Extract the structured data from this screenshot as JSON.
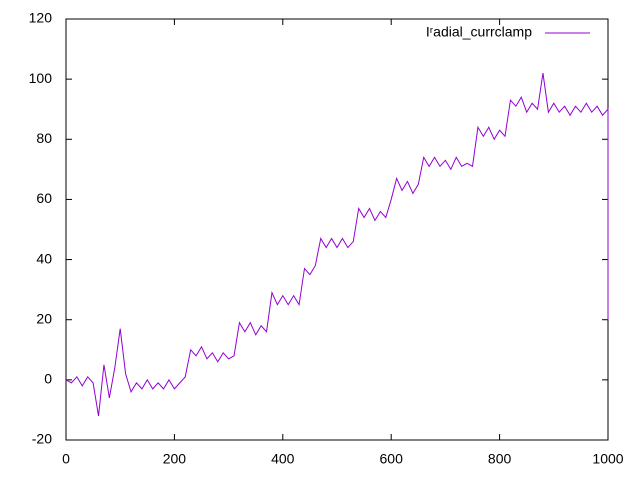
{
  "chart_data": {
    "type": "line",
    "xlim": [
      0,
      1000
    ],
    "xticks": [
      0,
      200,
      400,
      600,
      800,
      1000
    ],
    "ylim": [
      -20,
      120
    ],
    "yticks": [
      -20,
      0,
      20,
      40,
      60,
      80,
      100,
      120
    ],
    "legend": "top-right",
    "x": [
      0,
      10,
      20,
      30,
      40,
      50,
      60,
      70,
      80,
      90,
      100,
      110,
      120,
      130,
      140,
      150,
      160,
      170,
      180,
      190,
      200,
      210,
      220,
      230,
      240,
      250,
      260,
      270,
      280,
      290,
      300,
      310,
      320,
      330,
      340,
      350,
      360,
      370,
      380,
      390,
      400,
      410,
      420,
      430,
      440,
      450,
      460,
      470,
      480,
      490,
      500,
      510,
      520,
      530,
      540,
      550,
      560,
      570,
      580,
      590,
      600,
      610,
      620,
      630,
      640,
      650,
      660,
      670,
      680,
      690,
      700,
      710,
      720,
      730,
      740,
      750,
      760,
      770,
      780,
      790,
      800,
      810,
      820,
      830,
      840,
      850,
      860,
      870,
      880,
      890,
      900,
      910,
      920,
      930,
      940,
      950,
      960,
      970,
      980,
      990,
      1000,
      1000
    ],
    "series": [
      {
        "name": "Iʳadial_currclamp",
        "color": "#9400d3",
        "values": [
          0,
          -1,
          1,
          -2,
          1,
          -1,
          -12,
          5,
          -6,
          4,
          17,
          2,
          -4,
          -1,
          -3,
          0,
          -3,
          -1,
          -3,
          0,
          -3,
          -1,
          1,
          10,
          8,
          11,
          7,
          9,
          6,
          9,
          7,
          8,
          19,
          16,
          19,
          15,
          18,
          16,
          29,
          25,
          28,
          25,
          28,
          25,
          37,
          35,
          38,
          47,
          44,
          47,
          44,
          47,
          44,
          46,
          57,
          54,
          57,
          53,
          56,
          54,
          60,
          67,
          63,
          66,
          62,
          65,
          74,
          71,
          74,
          71,
          73,
          70,
          74,
          71,
          72,
          71,
          84,
          81,
          84,
          80,
          83,
          81,
          93,
          91,
          94,
          89,
          92,
          90,
          102,
          89,
          92,
          89,
          91,
          88,
          91,
          89,
          92,
          89,
          91,
          88,
          90,
          20
        ]
      }
    ]
  }
}
